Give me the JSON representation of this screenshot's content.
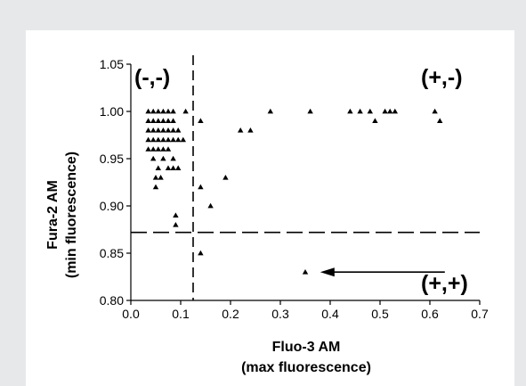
{
  "chart_data": {
    "type": "scatter",
    "title": "",
    "xlabel": "Fluo-3 AM",
    "xlabel2": "(max fluorescence)",
    "ylabel": "Fura-2 AM",
    "ylabel2": "(min fluorescence)",
    "xlim": [
      0.0,
      0.7
    ],
    "ylim": [
      0.8,
      1.05
    ],
    "xticks": [
      "0.0",
      "0.1",
      "0.2",
      "0.3",
      "0.4",
      "0.5",
      "0.6",
      "0.7"
    ],
    "yticks": [
      "0.80",
      "0.85",
      "0.90",
      "0.95",
      "1.00",
      "1.05"
    ],
    "xtick_values": [
      0.0,
      0.1,
      0.2,
      0.3,
      0.4,
      0.5,
      0.6,
      0.7
    ],
    "ytick_values": [
      0.8,
      0.85,
      0.9,
      0.95,
      1.0,
      1.05
    ],
    "threshold_x": 0.125,
    "threshold_y": 0.872,
    "quadrant_labels": {
      "top_left": "(-,-)",
      "top_right": "(+,-)",
      "bottom_right": "(+,+)"
    },
    "arrow": {
      "from": [
        0.63,
        0.83
      ],
      "to": [
        0.38,
        0.83
      ]
    },
    "marker_color": "#000000",
    "grid": false,
    "points": [
      [
        0.035,
        1.0
      ],
      [
        0.045,
        1.0
      ],
      [
        0.055,
        1.0
      ],
      [
        0.065,
        1.0
      ],
      [
        0.075,
        1.0
      ],
      [
        0.085,
        1.0
      ],
      [
        0.035,
        0.99
      ],
      [
        0.045,
        0.99
      ],
      [
        0.055,
        0.99
      ],
      [
        0.065,
        0.99
      ],
      [
        0.075,
        0.99
      ],
      [
        0.085,
        0.99
      ],
      [
        0.035,
        0.98
      ],
      [
        0.045,
        0.98
      ],
      [
        0.055,
        0.98
      ],
      [
        0.065,
        0.98
      ],
      [
        0.075,
        0.98
      ],
      [
        0.085,
        0.98
      ],
      [
        0.095,
        0.98
      ],
      [
        0.035,
        0.97
      ],
      [
        0.045,
        0.97
      ],
      [
        0.055,
        0.97
      ],
      [
        0.065,
        0.97
      ],
      [
        0.075,
        0.97
      ],
      [
        0.085,
        0.97
      ],
      [
        0.095,
        0.97
      ],
      [
        0.105,
        0.97
      ],
      [
        0.035,
        0.96
      ],
      [
        0.045,
        0.96
      ],
      [
        0.055,
        0.96
      ],
      [
        0.065,
        0.96
      ],
      [
        0.075,
        0.96
      ],
      [
        0.045,
        0.95
      ],
      [
        0.065,
        0.95
      ],
      [
        0.085,
        0.95
      ],
      [
        0.055,
        0.94
      ],
      [
        0.075,
        0.94
      ],
      [
        0.085,
        0.94
      ],
      [
        0.095,
        0.94
      ],
      [
        0.05,
        0.93
      ],
      [
        0.06,
        0.93
      ],
      [
        0.05,
        0.92
      ],
      [
        0.09,
        0.89
      ],
      [
        0.09,
        0.88
      ],
      [
        0.11,
        1.0
      ],
      [
        0.14,
        0.99
      ],
      [
        0.14,
        0.92
      ],
      [
        0.16,
        0.9
      ],
      [
        0.19,
        0.93
      ],
      [
        0.22,
        0.98
      ],
      [
        0.24,
        0.98
      ],
      [
        0.28,
        1.0
      ],
      [
        0.36,
        1.0
      ],
      [
        0.44,
        1.0
      ],
      [
        0.46,
        1.0
      ],
      [
        0.48,
        1.0
      ],
      [
        0.49,
        0.99
      ],
      [
        0.51,
        1.0
      ],
      [
        0.52,
        1.0
      ],
      [
        0.53,
        1.0
      ],
      [
        0.61,
        1.0
      ],
      [
        0.62,
        0.99
      ],
      [
        0.14,
        0.85
      ],
      [
        0.35,
        0.83
      ]
    ]
  }
}
